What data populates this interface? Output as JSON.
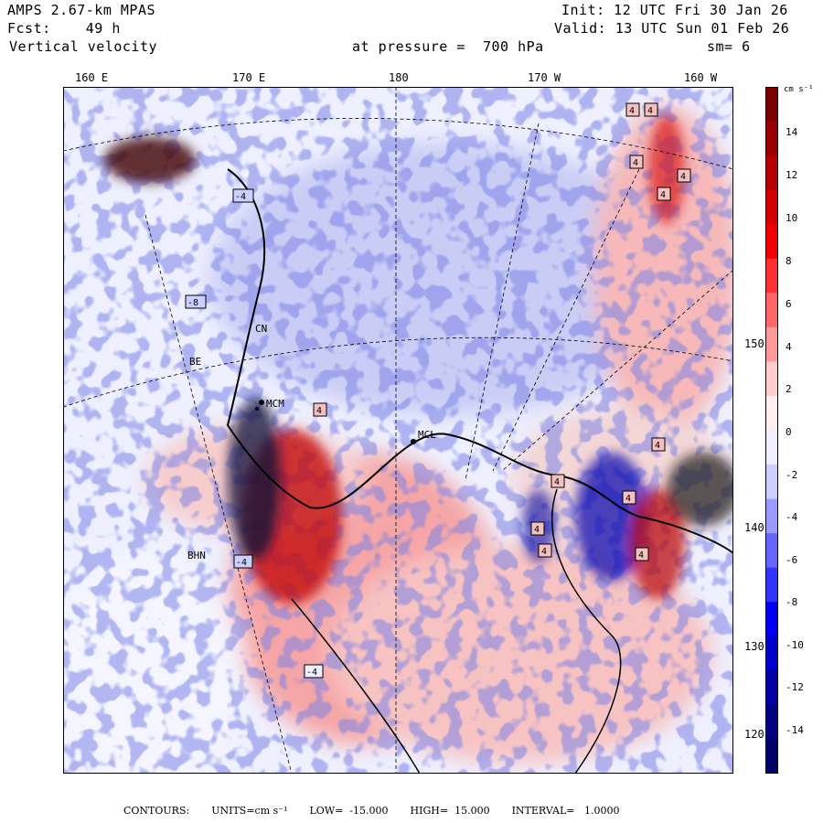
{
  "header": {
    "model": "AMPS 2.67-km MPAS",
    "init": "Init: 12 UTC Fri 30 Jan 26",
    "fcst_label": "Fcst:",
    "fcst_value": "49 h",
    "valid": "Valid: 13 UTC Sun 01 Feb 26",
    "field": "Vertical velocity",
    "level": "at pressure =  700 hPa",
    "smoothing": "sm= 6"
  },
  "axes": {
    "longitudes": [
      "160 E",
      "170 E",
      "180",
      "170 W",
      "160 W"
    ],
    "latitudes": [
      "150 W",
      "140 W",
      "130 W",
      "120 W"
    ]
  },
  "stations": [
    "BE",
    "MCM",
    "CN",
    "MCL",
    "BHN"
  ],
  "contour_labels": [
    "4",
    "4",
    "4",
    "4",
    "4",
    "-4",
    "-8",
    "4",
    "4",
    "4",
    "4",
    "4",
    "4",
    "4",
    "-4",
    "-4"
  ],
  "colorbar": {
    "units": "cm s⁻¹",
    "ticks": [
      "14",
      "12",
      "10",
      "8",
      "6",
      "4",
      "2",
      "0",
      "-2",
      "-4",
      "-6",
      "-8",
      "-10",
      "-12",
      "-14"
    ],
    "colors": [
      "#7a0000",
      "#990000",
      "#b80000",
      "#d40000",
      "#f00000",
      "#ff3030",
      "#ff6666",
      "#ff9999",
      "#ffcccc",
      "#ffeeee",
      "#eeeeff",
      "#ccccff",
      "#9999ff",
      "#6666ff",
      "#3333ff",
      "#0000f0",
      "#0000cc",
      "#0000a0",
      "#000080",
      "#000066"
    ]
  },
  "footer": {
    "contours": "CONTOURS:",
    "units": "UNITS=cm s⁻¹",
    "low": "LOW=  -15.000",
    "high": "HIGH=  15.000",
    "interval": "INTERVAL=   1.0000"
  }
}
